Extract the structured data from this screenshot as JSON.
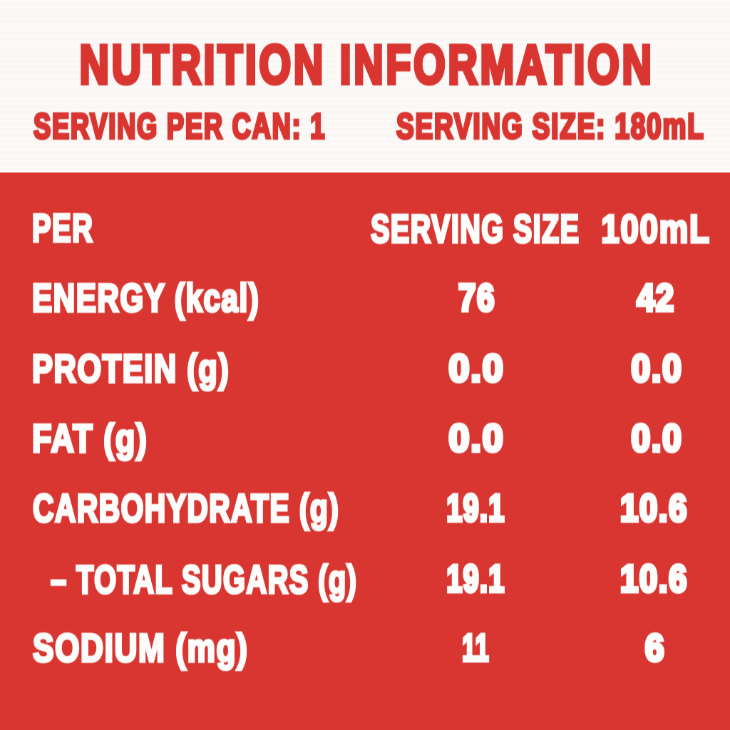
{
  "label": {
    "title": "NUTRITION INFORMATION",
    "serving_per_can": "SERVING PER CAN: 1",
    "serving_size": "SERVING SIZE: 180mL"
  },
  "table": {
    "header": {
      "col1": "PER",
      "col2": "SERVING SIZE",
      "col3": "100mL"
    },
    "rows": [
      {
        "label": "ENERGY (kcal)",
        "serving": "76",
        "per100": "42"
      },
      {
        "label": "PROTEIN (g)",
        "serving": "0.0",
        "per100": "0.0"
      },
      {
        "label": "FAT (g)",
        "serving": "0.0",
        "per100": "0.0"
      },
      {
        "label": "CARBOHYDRATE (g)",
        "serving": "19.1",
        "per100": "10.6"
      },
      {
        "label": "– TOTAL SUGARS (g)",
        "serving": "19.1",
        "per100": "10.6"
      },
      {
        "label": "SODIUM (mg)",
        "serving": "11",
        "per100": "6"
      }
    ]
  },
  "colors": {
    "red": "#d93531",
    "cream": "#fbf9f7",
    "text_white": "#fdfdfc"
  }
}
